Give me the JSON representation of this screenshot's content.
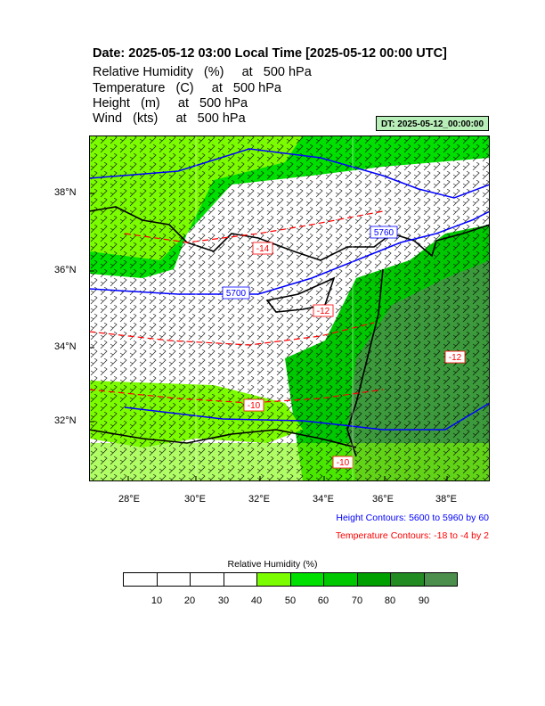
{
  "title": "Date: 2025-05-12  03:00 Local Time [2025-05-12  00:00 UTC]",
  "variables": [
    "Relative Humidity   (%)     at   500 hPa",
    "Temperature   (C)     at   500 hPa",
    "Height   (m)     at   500 hPa",
    "Wind   (kts)     at   500 hPa"
  ],
  "dt_badge": "DT: 2025-05-12_00:00:00",
  "map": {
    "lon_range": [
      26.7,
      39.4
    ],
    "lat_range": [
      30.6,
      39.6
    ],
    "lon_ticks": [
      "28°E",
      "30°E",
      "32°E",
      "34°E",
      "36°E",
      "38°E"
    ],
    "lat_ticks": [
      "38°N",
      "36°N",
      "34°N",
      "32°N"
    ],
    "height_contour_labels": [
      "5760",
      "5700"
    ],
    "temperature_contour_labels": [
      "-14",
      "-12",
      "-10",
      "-10",
      "-12"
    ]
  },
  "notes": {
    "height": "Height Contours: 5600 to 5960 by 60",
    "temperature": "Temperature Contours: -18 to -4 by 2"
  },
  "colors": {
    "height_contour": "#0000ff",
    "temperature_contour": "#ff0000",
    "coast": "#000000",
    "rh_levels": [
      "#ffffff",
      "#ffffff",
      "#ffffff",
      "#ffffff",
      "#7cfc00",
      "#00e000",
      "#00c800",
      "#00a000",
      "#228b22",
      "#4c8f4c"
    ]
  },
  "legend": {
    "title": "Relative Humidity  (%)",
    "labels": [
      "10",
      "20",
      "30",
      "40",
      "50",
      "60",
      "70",
      "80",
      "90"
    ]
  }
}
